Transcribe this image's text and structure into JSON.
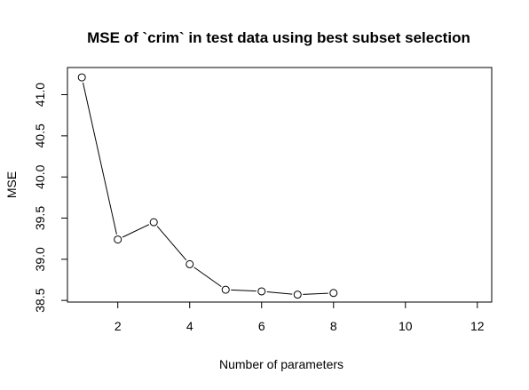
{
  "chart_data": {
    "type": "line",
    "title": "MSE of `crim` in test data using best subset selection",
    "xlabel": "Number of parameters",
    "ylabel": "MSE",
    "xlim": [
      0.6,
      12.4
    ],
    "ylim": [
      38.48,
      41.33
    ],
    "x_ticks": [
      2,
      4,
      6,
      8,
      10,
      12
    ],
    "y_ticks": [
      38.5,
      39.0,
      39.5,
      40.0,
      40.5,
      41.0
    ],
    "x_tick_labels": [
      "2",
      "4",
      "6",
      "8",
      "10",
      "12"
    ],
    "y_tick_labels": [
      "38.5",
      "39.0",
      "39.5",
      "40.0",
      "40.5",
      "41.0"
    ],
    "grid": false,
    "marker": "open-circle",
    "series": [
      {
        "x": [
          1,
          2,
          3,
          4,
          5,
          6,
          7,
          8
        ],
        "values": [
          41.21,
          39.24,
          39.45,
          38.94,
          38.63,
          38.61,
          38.57,
          38.59
        ]
      }
    ],
    "colors": {
      "line": "#000000",
      "marker_fill": "#ffffff",
      "axis": "#000000"
    }
  }
}
